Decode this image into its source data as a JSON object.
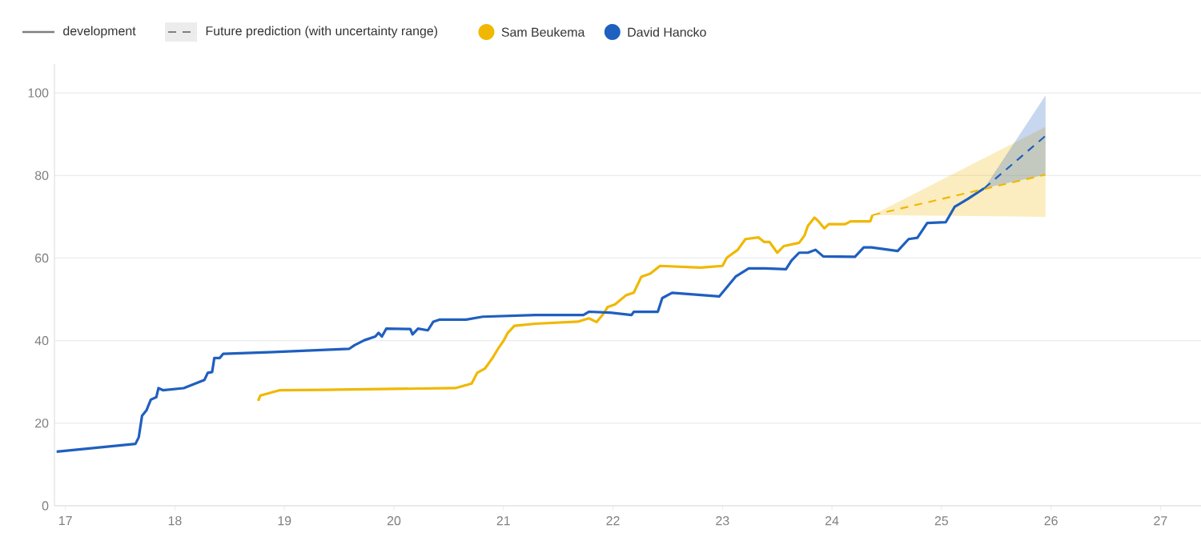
{
  "chart_data": {
    "type": "line",
    "xlim": [
      16.9,
      27.37
    ],
    "ylim": [
      0,
      107
    ],
    "xticks": [
      17,
      18,
      19,
      20,
      21,
      22,
      23,
      24,
      25,
      26,
      27
    ],
    "yticks": [
      0,
      20,
      40,
      60,
      80,
      100
    ],
    "grid": "y",
    "legend": "top left",
    "marker": "none",
    "annotations": [
      "development",
      "Future prediction (with uncertainty range)"
    ],
    "series": [
      {
        "name": "Sam Beukema",
        "color": "#f0b800",
        "x": [
          18.76,
          18.78,
          18.96,
          19.35,
          20.56,
          20.71,
          20.76,
          20.83,
          20.9,
          20.95,
          21.0,
          21.04,
          21.1,
          21.29,
          21.68,
          21.78,
          21.85,
          21.92,
          21.95,
          22.02,
          22.12,
          22.19,
          22.26,
          22.34,
          22.43,
          22.8,
          23.0,
          23.04,
          23.14,
          23.21,
          23.33,
          23.38,
          23.43,
          23.5,
          23.56,
          23.7,
          23.75,
          23.78,
          23.84,
          23.87,
          23.93,
          23.97,
          24.12,
          24.17,
          24.35,
          24.37
        ],
        "values": [
          25.4,
          26.7,
          28.0,
          28.1,
          28.5,
          29.6,
          32.2,
          33.2,
          35.8,
          38.0,
          39.9,
          41.9,
          43.6,
          44.1,
          44.6,
          45.4,
          44.5,
          46.7,
          48.1,
          48.8,
          51.0,
          51.6,
          55.5,
          56.2,
          58.1,
          57.7,
          58.1,
          60.1,
          62.0,
          64.6,
          65.0,
          63.9,
          63.9,
          61.3,
          62.9,
          63.7,
          65.5,
          67.8,
          69.8,
          69.1,
          67.2,
          68.2,
          68.2,
          68.9,
          68.9,
          70.4
        ]
      },
      {
        "name": "David Hancko",
        "color": "#1f5fbf",
        "x": [
          16.92,
          17.64,
          17.67,
          17.7,
          17.74,
          17.78,
          17.83,
          17.85,
          17.89,
          18.08,
          18.27,
          18.3,
          18.34,
          18.36,
          18.41,
          18.44,
          18.86,
          19.59,
          19.64,
          19.73,
          19.83,
          19.86,
          19.89,
          19.93,
          20.15,
          20.17,
          20.22,
          20.31,
          20.36,
          20.42,
          20.66,
          20.81,
          21.29,
          21.73,
          21.78,
          21.97,
          22.17,
          22.19,
          22.41,
          22.45,
          22.54,
          22.97,
          23.04,
          23.12,
          23.24,
          23.39,
          23.58,
          23.63,
          23.7,
          23.78,
          23.85,
          23.92,
          24.21,
          24.29,
          24.36,
          24.6,
          24.7,
          24.78,
          24.87,
          25.04,
          25.12,
          25.24,
          25.39
        ],
        "values": [
          13.1,
          15.0,
          16.6,
          21.8,
          23.1,
          25.7,
          26.3,
          28.5,
          28.0,
          28.5,
          30.5,
          32.2,
          32.4,
          35.8,
          35.8,
          36.8,
          37.2,
          38.0,
          38.9,
          40.1,
          41.0,
          41.9,
          41.0,
          42.9,
          42.8,
          41.5,
          42.9,
          42.5,
          44.6,
          45.1,
          45.1,
          45.8,
          46.2,
          46.2,
          47.0,
          46.8,
          46.2,
          47.0,
          47.0,
          50.3,
          51.6,
          50.7,
          52.9,
          55.5,
          57.5,
          57.5,
          57.3,
          59.4,
          61.3,
          61.3,
          62.0,
          60.4,
          60.3,
          62.6,
          62.6,
          61.7,
          64.6,
          64.9,
          68.5,
          68.7,
          72.4,
          74.3,
          76.9
        ]
      },
      {
        "color": "#f0b800",
        "line_style": "dashed",
        "x": [
          24.37,
          25.95
        ],
        "values": [
          70.4,
          80.2
        ],
        "lower": [
          70.4,
          70.0
        ],
        "upper": [
          70.4,
          91.8
        ]
      },
      {
        "color": "#1f5fbf",
        "line_style": "dashed",
        "x": [
          25.39,
          25.95
        ],
        "values": [
          76.9,
          89.6
        ],
        "lower": [
          76.9,
          80.2
        ],
        "upper": [
          76.9,
          99.4
        ]
      }
    ]
  }
}
